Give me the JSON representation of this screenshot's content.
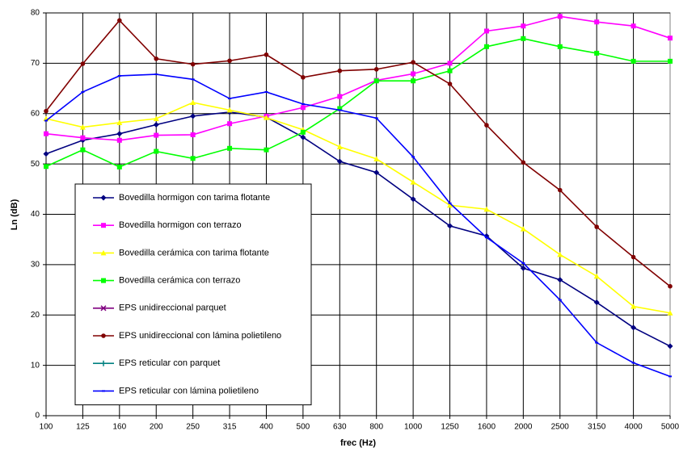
{
  "chart_data": {
    "type": "line",
    "x_label": "frec (Hz)",
    "y_label": "Ln (dB)",
    "categories": [
      "100",
      "125",
      "160",
      "200",
      "250",
      "315",
      "400",
      "500",
      "630",
      "800",
      "1000",
      "1250",
      "1600",
      "2000",
      "2500",
      "3150",
      "4000",
      "5000"
    ],
    "ylim": [
      0,
      80
    ],
    "yticks": [
      0,
      10,
      20,
      30,
      40,
      50,
      60,
      70,
      80
    ],
    "grid": true,
    "legend": "lower-left",
    "series": [
      {
        "name": "Bovedilla hormigon con tarima flotante",
        "color": "#000080",
        "marker": "diamond",
        "values": [
          52,
          54.7,
          56,
          57.8,
          59.5,
          60.3,
          59.3,
          55.3,
          50.5,
          48.3,
          43,
          37.7,
          35.7,
          29.3,
          27,
          22.5,
          17.5,
          13.8
        ]
      },
      {
        "name": "Bovedilla hormigon con terrazo",
        "color": "#ff00ff",
        "marker": "square",
        "values": [
          56,
          55.2,
          54.7,
          55.7,
          55.8,
          58,
          59.5,
          61.2,
          63.4,
          66.6,
          67.9,
          70,
          76.4,
          77.4,
          79.3,
          78.2,
          77.4,
          75
        ]
      },
      {
        "name": "Bovedilla cerámica con tarima flotante",
        "color": "#ffff00",
        "marker": "triangle",
        "values": [
          59,
          57.3,
          58.2,
          59,
          62.2,
          60.7,
          59.2,
          56.8,
          53.4,
          51,
          46.4,
          41.8,
          41,
          37.1,
          32,
          27.7,
          21.7,
          20.4
        ]
      },
      {
        "name": "Bovedilla cerámica con terrazo",
        "color": "#00ff00",
        "marker": "square",
        "values": [
          49.5,
          52.8,
          49.4,
          52.5,
          51.1,
          53.1,
          52.8,
          56.3,
          61,
          66.5,
          66.5,
          68.5,
          73.3,
          74.9,
          73.3,
          72,
          70.4,
          70.4
        ]
      },
      {
        "name": "EPS unidireccional parquet",
        "color": "#800080",
        "marker": "x",
        "values": [
          null,
          null,
          null,
          null,
          null,
          null,
          null,
          null,
          null,
          null,
          null,
          null,
          null,
          null,
          null,
          null,
          null,
          null
        ]
      },
      {
        "name": "EPS unidireccional con lámina polietileno",
        "color": "#800000",
        "marker": "circle",
        "values": [
          60.5,
          69.9,
          78.5,
          70.9,
          69.8,
          70.5,
          71.7,
          67.2,
          68.5,
          68.8,
          70.2,
          65.9,
          57.7,
          50.3,
          44.8,
          37.5,
          31.5,
          25.7
        ]
      },
      {
        "name": "EPS reticular con parquet",
        "color": "#008080",
        "marker": "plus",
        "values": [
          null,
          null,
          null,
          null,
          null,
          null,
          null,
          null,
          null,
          null,
          null,
          null,
          null,
          null,
          null,
          null,
          null,
          null
        ]
      },
      {
        "name": "EPS reticular con lámina polietileno",
        "color": "#0000ff",
        "marker": "dash",
        "values": [
          58.6,
          64.3,
          67.5,
          67.8,
          66.8,
          63,
          64.3,
          61.9,
          60.7,
          59.1,
          51.4,
          42.2,
          35.4,
          30.3,
          23,
          14.5,
          10.5,
          7.8
        ]
      }
    ]
  }
}
